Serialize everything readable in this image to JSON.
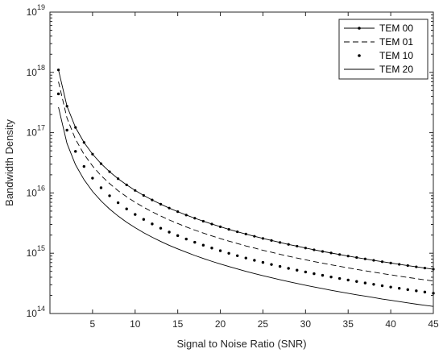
{
  "chart_data": {
    "type": "line",
    "title": "",
    "xlabel": "Signal to Noise Ratio (SNR)",
    "ylabel": "Bandwidth Density",
    "xlim": [
      0,
      45
    ],
    "ylim": [
      100000000000000.0,
      1e+19
    ],
    "yscale": "log",
    "x_ticks": [
      5,
      10,
      15,
      20,
      25,
      30,
      35,
      40,
      45
    ],
    "y_ticks": [
      {
        "value": 100000000000000.0,
        "base": "10",
        "exp": "14"
      },
      {
        "value": 1000000000000000.0,
        "base": "10",
        "exp": "15"
      },
      {
        "value": 1e+16,
        "base": "10",
        "exp": "16"
      },
      {
        "value": 1e+17,
        "base": "10",
        "exp": "17"
      },
      {
        "value": 1e+18,
        "base": "10",
        "exp": "18"
      },
      {
        "value": 1e+19,
        "base": "10",
        "exp": "19"
      }
    ],
    "grid": false,
    "legend_position": "top-right",
    "x": [
      1,
      2,
      3,
      4,
      5,
      6,
      7,
      8,
      9,
      10,
      11,
      12,
      13,
      14,
      15,
      16,
      17,
      18,
      19,
      20,
      21,
      22,
      23,
      24,
      25,
      26,
      27,
      28,
      29,
      30,
      31,
      32,
      33,
      34,
      35,
      36,
      37,
      38,
      39,
      40,
      41,
      42,
      43,
      44,
      45
    ],
    "series": [
      {
        "name": "TEM 00",
        "style": "solid-dot-markers",
        "color": "#000000",
        "values": [
          1.1e+18,
          2.75e+17,
          1.22e+17,
          6.88e+16,
          4.4e+16,
          3.06e+16,
          2.25e+16,
          1.72e+16,
          1.36e+16,
          1.1e+16,
          9090000000000000.0,
          7640000000000000.0,
          6510000000000000.0,
          5610000000000000.0,
          4890000000000000.0,
          4300000000000000.0,
          3810000000000000.0,
          3400000000000000.0,
          3050000000000000.0,
          2750000000000000.0,
          2490000000000000.0,
          2270000000000000.0,
          2080000000000000.0,
          1910000000000000.0,
          1760000000000000.0,
          1630000000000000.0,
          1510000000000000.0,
          1400000000000000.0,
          1310000000000000.0,
          1220000000000000.0,
          1140000000000000.0,
          1070000000000000.0,
          1010000000000000.0,
          952000000000000.0,
          898000000000000.0,
          849000000000000.0,
          804000000000000.0,
          762000000000000.0,
          723000000000000.0,
          688000000000000.0,
          654000000000000.0,
          624000000000000.0,
          595000000000000.0,
          568000000000000.0,
          543000000000000.0
        ]
      },
      {
        "name": "TEM 01",
        "style": "dashed",
        "color": "#000000",
        "values": [
          7e+17,
          1.75e+17,
          7.78e+16,
          4.38e+16,
          2.8e+16,
          1.94e+16,
          1.43e+16,
          1.09e+16,
          8640000000000000.0,
          7000000000000000.0,
          5790000000000000.0,
          4860000000000000.0,
          4140000000000000.0,
          3570000000000000.0,
          3110000000000000.0,
          2730000000000000.0,
          2420000000000000.0,
          2160000000000000.0,
          1940000000000000.0,
          1750000000000000.0,
          1590000000000000.0,
          1450000000000000.0,
          1320000000000000.0,
          1220000000000000.0,
          1120000000000000.0,
          1040000000000000.0,
          960000000000000.0,
          893000000000000.0,
          832000000000000.0,
          778000000000000.0,
          728000000000000.0,
          684000000000000.0,
          643000000000000.0,
          606000000000000.0,
          571000000000000.0,
          540000000000000.0,
          511000000000000.0,
          485000000000000.0,
          460000000000000.0,
          438000000000000.0,
          416000000000000.0,
          397000000000000.0,
          379000000000000.0,
          362000000000000.0,
          346000000000000.0
        ]
      },
      {
        "name": "TEM 10",
        "style": "dotted",
        "color": "#000000",
        "values": [
          4.4e+17,
          1.1e+17,
          4.89e+16,
          2.75e+16,
          1.76e+16,
          1.22e+16,
          8980000000000000.0,
          6880000000000000.0,
          5430000000000000.0,
          4400000000000000.0,
          3640000000000000.0,
          3060000000000000.0,
          2600000000000000.0,
          2240000000000000.0,
          1960000000000000.0,
          1720000000000000.0,
          1520000000000000.0,
          1360000000000000.0,
          1220000000000000.0,
          1100000000000000.0,
          998000000000000.0,
          909000000000000.0,
          832000000000000.0,
          764000000000000.0,
          704000000000000.0,
          651000000000000.0,
          604000000000000.0,
          561000000000000.0,
          523000000000000.0,
          489000000000000.0,
          458000000000000.0,
          430000000000000.0,
          404000000000000.0,
          381000000000000.0,
          359000000000000.0,
          340000000000000.0,
          321000000000000.0,
          305000000000000.0,
          289000000000000.0,
          275000000000000.0,
          262000000000000.0,
          249000000000000.0,
          238000000000000.0,
          227000000000000.0,
          217000000000000.0
        ]
      },
      {
        "name": "TEM 20",
        "style": "solid",
        "color": "#000000",
        "values": [
          2.65e+17,
          6.63e+16,
          2.94e+16,
          1.66e+16,
          1.06e+16,
          7360000000000000.0,
          5410000000000000.0,
          4140000000000000.0,
          3270000000000000.0,
          2650000000000000.0,
          2190000000000000.0,
          1840000000000000.0,
          1570000000000000.0,
          1350000000000000.0,
          1180000000000000.0,
          1040000000000000.0,
          917000000000000.0,
          818000000000000.0,
          734000000000000.0,
          663000000000000.0,
          601000000000000.0,
          548000000000000.0,
          501000000000000.0,
          460000000000000.0,
          424000000000000.0,
          392000000000000.0,
          364000000000000.0,
          338000000000000.0,
          315000000000000.0,
          294000000000000.0,
          276000000000000.0,
          259000000000000.0,
          243000000000000.0,
          229000000000000.0,
          216000000000000.0,
          204000000000000.0,
          194000000000000.0,
          184000000000000.0,
          174000000000000.0,
          166000000000000.0,
          158000000000000.0,
          150000000000000.0,
          143000000000000.0,
          137000000000000.0,
          131000000000000.0
        ]
      }
    ]
  }
}
